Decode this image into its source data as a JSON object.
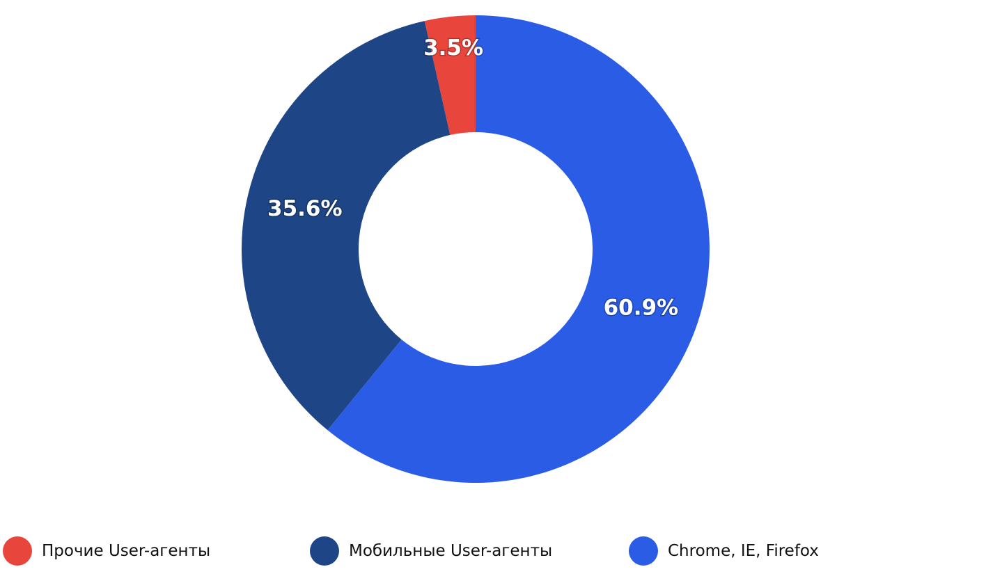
{
  "chart_data": {
    "type": "pie",
    "variant": "donut",
    "title": "",
    "series": [
      {
        "name": "Прочие User-агенты",
        "value": 3.5,
        "label": "3.5%",
        "color": "#E8453C"
      },
      {
        "name": "Мобильные User-агенты",
        "value": 35.6,
        "label": "35.6%",
        "color": "#1E4585"
      },
      {
        "name": "Chrome, IE, Firefox",
        "value": 60.9,
        "label": "60.9%",
        "color": "#2A5CE6"
      }
    ],
    "start_angle": "12 o'clock",
    "direction": "counter-clockwise",
    "legend_position": "bottom"
  }
}
